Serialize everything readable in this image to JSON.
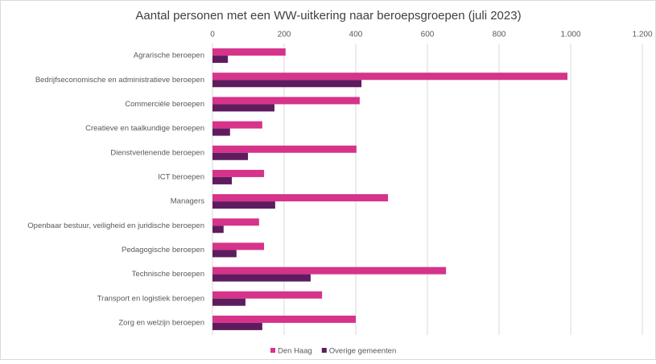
{
  "chart_data": {
    "type": "hbar",
    "title": "Aantal personen met een WW-uitkering naar beroepsgroepen (juli 2023)",
    "categories": [
      "Agrarische beroepen",
      "Bedrijfseconomische en administratieve beroepen",
      "Commerciële beroepen",
      "Creatieve en taalkundige beroepen",
      "Dienstverlenende beroepen",
      "ICT beroepen",
      "Managers",
      "Openbaar bestuur, veiligheid en juridische beroepen",
      "Pedagogische beroepen",
      "Technische beroepen",
      "Transport en logistiek beroepen",
      "Zorg en welzijn beroepen"
    ],
    "series": [
      {
        "name": "Den Haag",
        "color": "#d6338a",
        "values": [
          204,
          991,
          411,
          139,
          402,
          144,
          490,
          130,
          144,
          652,
          306,
          400
        ]
      },
      {
        "name": "Overige gemeenten",
        "color": "#5e1c5f",
        "values": [
          43,
          416,
          173,
          49,
          99,
          54,
          175,
          31,
          67,
          274,
          92,
          139
        ]
      }
    ],
    "xlim": [
      0,
      1200
    ],
    "xticks": [
      0,
      200,
      400,
      600,
      800,
      {
        "value": 1000,
        "label": "1.000"
      },
      {
        "value": 1200,
        "label": "1.200"
      }
    ],
    "grid": true,
    "legend": "bottom"
  }
}
